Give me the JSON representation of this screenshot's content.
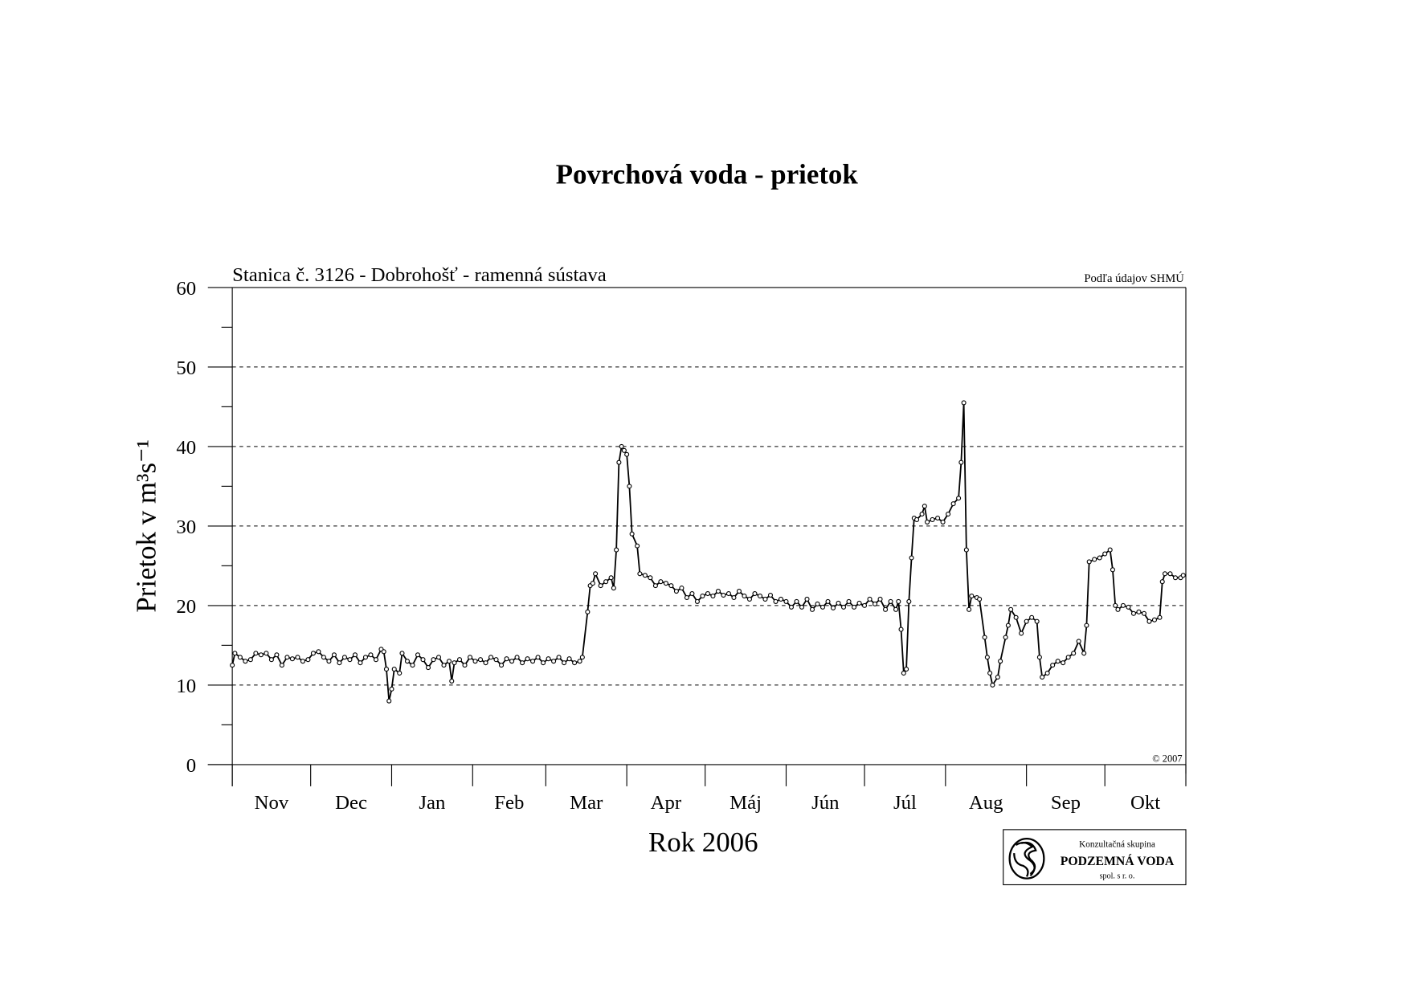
{
  "chart_data": {
    "type": "line",
    "title": "Povrchová voda - prietok",
    "subtitle": "Stanica č. 3126 - Dobrohošť - ramenná sústava",
    "source": "Podľa údajov SHMÚ",
    "copyright": "© 2007",
    "y_label": "Prietok v m³s⁻¹",
    "x_label": "Rok 2006",
    "logo": {
      "line1": "Konzultačná skupina",
      "line2": "PODZEMNÁ VODA",
      "line3": "spol. s r. o."
    },
    "months": [
      "Nov",
      "Dec",
      "Jan",
      "Feb",
      "Mar",
      "Apr",
      "Máj",
      "Jún",
      "Júl",
      "Aug",
      "Sep",
      "Okt"
    ],
    "xlim": [
      0,
      365
    ],
    "xticks": [
      0,
      30,
      61,
      92,
      120,
      151,
      181,
      212,
      242,
      273,
      304,
      334,
      365
    ],
    "ylim": [
      0,
      60
    ],
    "yticks": [
      0,
      10,
      20,
      30,
      40,
      50,
      60
    ],
    "yticks_minor": [
      5,
      15,
      25,
      35,
      45,
      55
    ],
    "grid": true,
    "color": "#000000",
    "x": [
      0,
      1,
      3,
      5,
      7,
      9,
      11,
      13,
      15,
      17,
      19,
      21,
      23,
      25,
      27,
      29,
      31,
      33,
      35,
      37,
      39,
      41,
      43,
      45,
      47,
      49,
      51,
      53,
      55,
      57,
      58,
      59,
      60,
      61,
      62,
      64,
      65,
      67,
      69,
      71,
      73,
      75,
      77,
      79,
      81,
      83,
      84,
      85,
      87,
      89,
      91,
      93,
      95,
      97,
      99,
      101,
      103,
      105,
      107,
      109,
      111,
      113,
      115,
      117,
      119,
      121,
      123,
      125,
      127,
      129,
      131,
      133,
      134,
      136,
      137,
      138,
      139,
      141,
      143,
      145,
      146,
      147,
      148,
      149,
      150,
      151,
      152,
      153,
      155,
      156,
      158,
      160,
      162,
      164,
      166,
      168,
      170,
      172,
      174,
      176,
      178,
      180,
      182,
      184,
      186,
      188,
      190,
      192,
      194,
      196,
      198,
      200,
      202,
      204,
      206,
      208,
      210,
      212,
      214,
      216,
      218,
      220,
      222,
      224,
      226,
      228,
      230,
      232,
      234,
      236,
      238,
      240,
      242,
      244,
      246,
      248,
      250,
      252,
      254,
      255,
      256,
      257,
      258,
      259,
      260,
      261,
      262,
      264,
      265,
      266,
      268,
      270,
      272,
      274,
      276,
      278,
      279,
      280,
      281,
      282,
      283,
      285,
      286,
      288,
      289,
      290,
      291,
      293,
      294,
      296,
      297,
      298,
      300,
      302,
      304,
      306,
      308,
      309,
      310,
      312,
      314,
      316,
      318,
      320,
      322,
      324,
      326,
      327,
      328,
      330,
      332,
      334,
      336,
      337,
      338,
      339,
      341,
      343,
      345,
      347,
      349,
      351,
      353,
      355,
      356,
      357,
      359,
      361,
      363,
      364
    ],
    "values": [
      12.5,
      14,
      13.5,
      13,
      13.2,
      14,
      13.8,
      14,
      13.2,
      13.8,
      12.5,
      13.5,
      13.3,
      13.5,
      13,
      13.2,
      14,
      14.2,
      13.5,
      13,
      13.8,
      12.8,
      13.5,
      13.2,
      13.8,
      12.8,
      13.5,
      13.8,
      13.2,
      14.5,
      14.2,
      12,
      8,
      9.5,
      12,
      11.5,
      14,
      13,
      12.5,
      13.8,
      13.2,
      12.2,
      13.2,
      13.5,
      12.5,
      13,
      10.5,
      12.8,
      13.2,
      12.5,
      13.5,
      13,
      13.2,
      12.8,
      13.5,
      13.2,
      12.5,
      13.3,
      13,
      13.5,
      12.8,
      13.3,
      13,
      13.5,
      12.8,
      13.3,
      13,
      13.5,
      12.8,
      13.3,
      12.8,
      13,
      13.5,
      19.2,
      22.5,
      22.8,
      24,
      22.5,
      23,
      23.5,
      22.2,
      27,
      38,
      40,
      39.5,
      39,
      35,
      29,
      27.5,
      24,
      23.8,
      23.5,
      22.5,
      23,
      22.8,
      22.5,
      21.8,
      22.2,
      21,
      21.5,
      20.5,
      21.2,
      21.5,
      21.2,
      21.8,
      21.3,
      21.5,
      21,
      21.8,
      21.2,
      20.8,
      21.5,
      21.2,
      20.8,
      21.3,
      20.5,
      20.8,
      20.5,
      19.8,
      20.5,
      19.8,
      20.8,
      19.5,
      20.2,
      19.8,
      20.5,
      19.7,
      20.3,
      19.8,
      20.5,
      19.8,
      20.3,
      20,
      20.8,
      20.2,
      20.8,
      19.5,
      20.5,
      19.5,
      20.5,
      17,
      11.5,
      12,
      20.5,
      26,
      31,
      30.8,
      31.5,
      32.5,
      30.5,
      30.8,
      31,
      30.5,
      31.5,
      32.8,
      33.5,
      38,
      45.5,
      27,
      19.5,
      21.2,
      21,
      20.8,
      16,
      13.5,
      11.5,
      10,
      11,
      13,
      16,
      17.5,
      19.5,
      18.5,
      16.5,
      18,
      18.5,
      18,
      13.5,
      11,
      11.5,
      12.5,
      13,
      12.8,
      13.5,
      14,
      15.5,
      14,
      17.5,
      25.5,
      25.8,
      26,
      26.5,
      27,
      24.5,
      20,
      19.5,
      20,
      19.8,
      19,
      19.2,
      19,
      18,
      18.2,
      18.5,
      23,
      24,
      24,
      23.5,
      23.5,
      23.8
    ]
  }
}
